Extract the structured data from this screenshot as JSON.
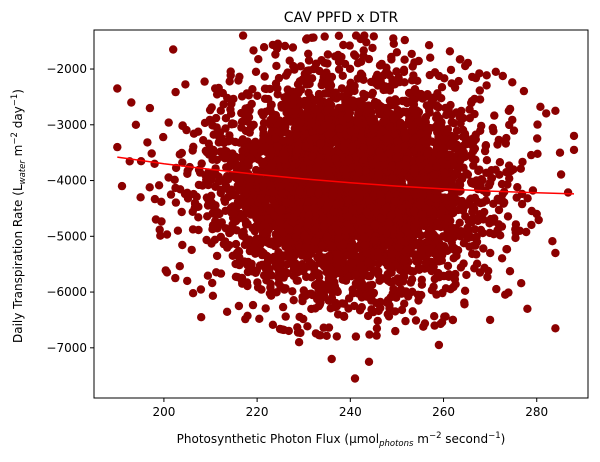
{
  "chart_data": {
    "type": "scatter",
    "title": "CAV PPFD x DTR",
    "xlabel": {
      "pre": "Photosynthetic Photon Flux (µmol",
      "sub": "photons",
      "mid": " m",
      "sup": "−2",
      "post": " second",
      "sup2": "−1",
      "end": ")"
    },
    "ylabel": {
      "pre": "Daily Transpiration Rate (L",
      "sub": "water",
      "mid": " m",
      "sup": "−2",
      "post": " day",
      "sup2": "−1",
      "end": ")"
    },
    "xlim": [
      185,
      291
    ],
    "ylim": [
      -7900,
      -1300
    ],
    "xticks": [
      200,
      220,
      240,
      260,
      280
    ],
    "yticks": [
      -7000,
      -6000,
      -5000,
      -4000,
      -3000,
      -2000
    ],
    "xtick_labels": [
      "200",
      "220",
      "240",
      "260",
      "280"
    ],
    "ytick_labels": [
      "−7000",
      "−6000",
      "−5000",
      "−4000",
      "−3000",
      "−2000"
    ],
    "grid": false,
    "legend": "none",
    "scatter": {
      "color": "#8b0000",
      "marker": "circle",
      "point_count_estimate": 20000,
      "x_center": 240,
      "x_std": 14,
      "y_center": -4100,
      "y_std": 950,
      "outliers": [
        {
          "x": 190,
          "y": -2350
        },
        {
          "x": 190,
          "y": -3400
        },
        {
          "x": 191,
          "y": -4100
        },
        {
          "x": 193,
          "y": -2600
        },
        {
          "x": 194,
          "y": -3000
        },
        {
          "x": 195,
          "y": -4300
        },
        {
          "x": 197,
          "y": -2700
        },
        {
          "x": 198,
          "y": -3700
        },
        {
          "x": 202,
          "y": -1650
        },
        {
          "x": 203,
          "y": -4900
        },
        {
          "x": 205,
          "y": -5800
        },
        {
          "x": 208,
          "y": -6450
        },
        {
          "x": 217,
          "y": -1400
        },
        {
          "x": 229,
          "y": -6900
        },
        {
          "x": 236,
          "y": -7200
        },
        {
          "x": 241,
          "y": -7550
        },
        {
          "x": 243,
          "y": -1400
        },
        {
          "x": 244,
          "y": -7250
        },
        {
          "x": 250,
          "y": -1700
        },
        {
          "x": 259,
          "y": -6950
        },
        {
          "x": 270,
          "y": -6500
        },
        {
          "x": 274,
          "y": -2750
        },
        {
          "x": 275,
          "y": -3800
        },
        {
          "x": 278,
          "y": -6300
        },
        {
          "x": 280,
          "y": -4600
        },
        {
          "x": 284,
          "y": -2750
        },
        {
          "x": 284,
          "y": -5300
        },
        {
          "x": 284,
          "y": -6650
        },
        {
          "x": 285,
          "y": -3500
        },
        {
          "x": 288,
          "y": -3200
        },
        {
          "x": 288,
          "y": -3450
        }
      ]
    },
    "trend_line": {
      "color": "#ff0000",
      "x": [
        190,
        200,
        210,
        220,
        230,
        240,
        250,
        260,
        270,
        280,
        288
      ],
      "y": [
        -3580,
        -3700,
        -3800,
        -3890,
        -3970,
        -4040,
        -4100,
        -4150,
        -4190,
        -4220,
        -4240
      ]
    }
  }
}
